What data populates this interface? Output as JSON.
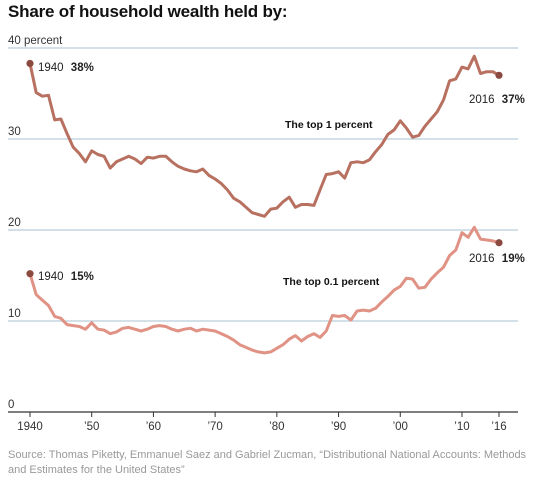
{
  "header": {
    "title": "Share of household wealth held by:"
  },
  "source": "Source: Thomas Piketty, Emmanuel Saez and Gabriel Zucman, “Distributional National Accounts: Methods and Estimates for the United States”",
  "colors": {
    "top1": "#b87060",
    "top01": "#e09285",
    "grid": "#a8c0d0",
    "axis": "#333333",
    "dot": "#8a4a40"
  },
  "chart_data": {
    "type": "line",
    "title": "Share of household wealth held by:",
    "xlim": [
      1940,
      2016
    ],
    "ylim": [
      0,
      40
    ],
    "x_ticks": [
      {
        "value": 1940,
        "label": "1940"
      },
      {
        "value": 1950,
        "label": "’50"
      },
      {
        "value": 1960,
        "label": "’60"
      },
      {
        "value": 1970,
        "label": "’70"
      },
      {
        "value": 1980,
        "label": "’80"
      },
      {
        "value": 1990,
        "label": "’90"
      },
      {
        "value": 2000,
        "label": "’00"
      },
      {
        "value": 2010,
        "label": "’10"
      },
      {
        "value": 2016,
        "label": "’16"
      }
    ],
    "y_ticks": [
      {
        "value": 0,
        "label": "0"
      },
      {
        "value": 10,
        "label": "10"
      },
      {
        "value": 20,
        "label": "20"
      },
      {
        "value": 30,
        "label": "30"
      },
      {
        "value": 40,
        "label": "40 percent"
      }
    ],
    "grid": true,
    "x": [
      1940,
      1941,
      1942,
      1943,
      1944,
      1945,
      1946,
      1947,
      1948,
      1949,
      1950,
      1951,
      1952,
      1953,
      1954,
      1955,
      1956,
      1957,
      1958,
      1959,
      1960,
      1961,
      1962,
      1963,
      1964,
      1965,
      1966,
      1967,
      1968,
      1969,
      1970,
      1971,
      1972,
      1973,
      1974,
      1975,
      1976,
      1977,
      1978,
      1979,
      1980,
      1981,
      1982,
      1983,
      1984,
      1985,
      1986,
      1987,
      1988,
      1989,
      1990,
      1991,
      1992,
      1993,
      1994,
      1995,
      1996,
      1997,
      1998,
      1999,
      2000,
      2001,
      2002,
      2003,
      2004,
      2005,
      2006,
      2007,
      2008,
      2009,
      2010,
      2011,
      2012,
      2013,
      2014,
      2015,
      2016
    ],
    "series": [
      {
        "name": "The top 1 percent",
        "values": [
          38.3,
          35.1,
          34.7,
          34.8,
          32.1,
          32.2,
          30.6,
          29.1,
          28.4,
          27.5,
          28.7,
          28.3,
          28.1,
          26.8,
          27.5,
          27.8,
          28.1,
          27.8,
          27.3,
          28.0,
          27.9,
          28.1,
          28.1,
          27.5,
          27.0,
          26.7,
          26.5,
          26.4,
          26.7,
          26.0,
          25.6,
          25.1,
          24.4,
          23.5,
          23.1,
          22.5,
          21.9,
          21.7,
          21.5,
          22.3,
          22.4,
          23.1,
          23.6,
          22.5,
          22.8,
          22.8,
          22.7,
          24.4,
          26.1,
          26.2,
          26.4,
          25.7,
          27.4,
          27.5,
          27.4,
          27.7,
          28.6,
          29.4,
          30.5,
          31.0,
          32.0,
          31.2,
          30.2,
          30.4,
          31.4,
          32.2,
          33.0,
          34.3,
          36.4,
          36.6,
          37.9,
          37.7,
          39.1,
          37.2,
          37.4,
          37.4,
          37.0
        ]
      },
      {
        "name": "The top 0.1 percent",
        "values": [
          15.2,
          12.9,
          12.3,
          11.7,
          10.5,
          10.3,
          9.6,
          9.5,
          9.4,
          9.1,
          9.8,
          9.1,
          9.0,
          8.6,
          8.8,
          9.2,
          9.3,
          9.1,
          8.9,
          9.1,
          9.4,
          9.5,
          9.4,
          9.1,
          8.9,
          9.1,
          9.2,
          8.9,
          9.1,
          9.0,
          8.9,
          8.6,
          8.3,
          7.9,
          7.4,
          7.1,
          6.8,
          6.6,
          6.5,
          6.6,
          7.0,
          7.4,
          8.0,
          8.4,
          7.8,
          8.3,
          8.6,
          8.2,
          8.9,
          10.6,
          10.5,
          10.6,
          10.1,
          11.1,
          11.2,
          11.1,
          11.4,
          12.1,
          12.7,
          13.4,
          13.8,
          14.7,
          14.6,
          13.6,
          13.7,
          14.6,
          15.3,
          15.9,
          17.2,
          17.8,
          19.7,
          19.2,
          20.3,
          19.0,
          18.9,
          18.8,
          18.6
        ]
      }
    ],
    "annotations": {
      "top1_start": {
        "year": "1940",
        "value": "38%"
      },
      "top1_end": {
        "year": "2016",
        "value": "37%"
      },
      "top01_start": {
        "year": "1940",
        "value": "15%"
      },
      "top01_end": {
        "year": "2016",
        "value": "19%"
      }
    }
  }
}
